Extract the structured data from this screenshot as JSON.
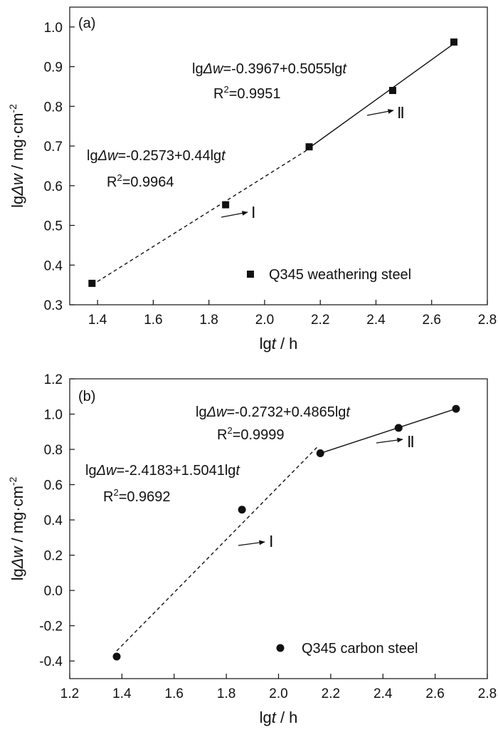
{
  "chart_data": [
    {
      "type": "scatter",
      "panel_label": "(a)",
      "xlabel": {
        "pre": "lg",
        "it": "t",
        "post": " / h"
      },
      "ylabel": {
        "pre": "lg",
        "it": "Δw",
        "post": " / mg·cm",
        "sup": "-2"
      },
      "xlim": [
        1.3,
        2.8
      ],
      "ylim": [
        0.3,
        1.05
      ],
      "xticks": [
        1.4,
        1.6,
        1.8,
        2.0,
        2.2,
        2.4,
        2.6,
        2.8
      ],
      "xtick_labels": [
        "1.4",
        "1.6",
        "1.8",
        "2.0",
        "2.2",
        "2.4",
        "2.6",
        "2.8"
      ],
      "yticks": [
        0.3,
        0.4,
        0.5,
        0.6,
        0.7,
        0.8,
        0.9,
        1.0
      ],
      "ytick_labels": [
        "0.3",
        "0.4",
        "0.5",
        "0.6",
        "0.7",
        "0.8",
        "0.9",
        "1.0"
      ],
      "grid": false,
      "legend_position": "bottom-right",
      "series": [
        {
          "name": "Q345 weathering steel",
          "marker": "square",
          "x": [
            1.38,
            1.86,
            2.16,
            2.46,
            2.68
          ],
          "y": [
            0.354,
            0.552,
            0.698,
            0.84,
            0.962
          ]
        }
      ],
      "fits": [
        {
          "stage": "Ⅰ",
          "style": "dashed",
          "intercept": -0.2573,
          "slope": 0.44,
          "x_range": [
            1.38,
            2.16
          ],
          "equation": {
            "pre": "lg",
            "it1": "Δw",
            "mid": "=-0.2573+0.44lg",
            "it2": "t"
          },
          "r2": "=0.9964"
        },
        {
          "stage": "Ⅱ",
          "style": "solid",
          "intercept": -0.3967,
          "slope": 0.5055,
          "x_range": [
            2.16,
            2.68
          ],
          "equation": {
            "pre": "lg",
            "it1": "Δw",
            "mid": "=-0.3967+0.5055lg",
            "it2": "t"
          },
          "r2": "=0.9951"
        }
      ]
    },
    {
      "type": "scatter",
      "panel_label": "(b)",
      "xlabel": {
        "pre": "lg",
        "it": "t",
        "post": " / h"
      },
      "ylabel": {
        "pre": "lg",
        "it": "Δw",
        "post": " / mg·cm",
        "sup": "-2"
      },
      "xlim": [
        1.2,
        2.8
      ],
      "ylim": [
        -0.5,
        1.2
      ],
      "xticks": [
        1.2,
        1.4,
        1.6,
        1.8,
        2.0,
        2.2,
        2.4,
        2.6,
        2.8
      ],
      "xtick_labels": [
        "1.2",
        "1.4",
        "1.6",
        "1.8",
        "2.0",
        "2.2",
        "2.4",
        "2.6",
        "2.8"
      ],
      "yticks": [
        -0.4,
        -0.2,
        0.0,
        0.2,
        0.4,
        0.6,
        0.8,
        1.0,
        1.2
      ],
      "ytick_labels": [
        "-0.4",
        "-0.2",
        "0.0",
        "0.2",
        "0.4",
        "0.6",
        "0.8",
        "1.0",
        "1.2"
      ],
      "grid": false,
      "legend_position": "bottom-right",
      "series": [
        {
          "name": "Q345 carbon steel",
          "marker": "circle",
          "x": [
            1.38,
            1.86,
            2.16,
            2.46,
            2.68
          ],
          "y": [
            -0.375,
            0.458,
            0.778,
            0.922,
            1.03
          ]
        }
      ],
      "fits": [
        {
          "stage": "Ⅰ",
          "style": "dashed",
          "intercept": -2.4183,
          "slope": 1.5041,
          "x_range": [
            1.38,
            2.15
          ],
          "equation": {
            "pre": "lg",
            "it1": "Δw",
            "mid": "=-2.4183+1.5041lg",
            "it2": "t"
          },
          "r2": "=0.9692"
        },
        {
          "stage": "Ⅱ",
          "style": "solid",
          "intercept": -0.2732,
          "slope": 0.4865,
          "x_range": [
            2.16,
            2.68
          ],
          "equation": {
            "pre": "lg",
            "it1": "Δw",
            "mid": "=-0.2732+0.4865lg",
            "it2": "t"
          },
          "r2": "=0.9999"
        }
      ]
    }
  ]
}
